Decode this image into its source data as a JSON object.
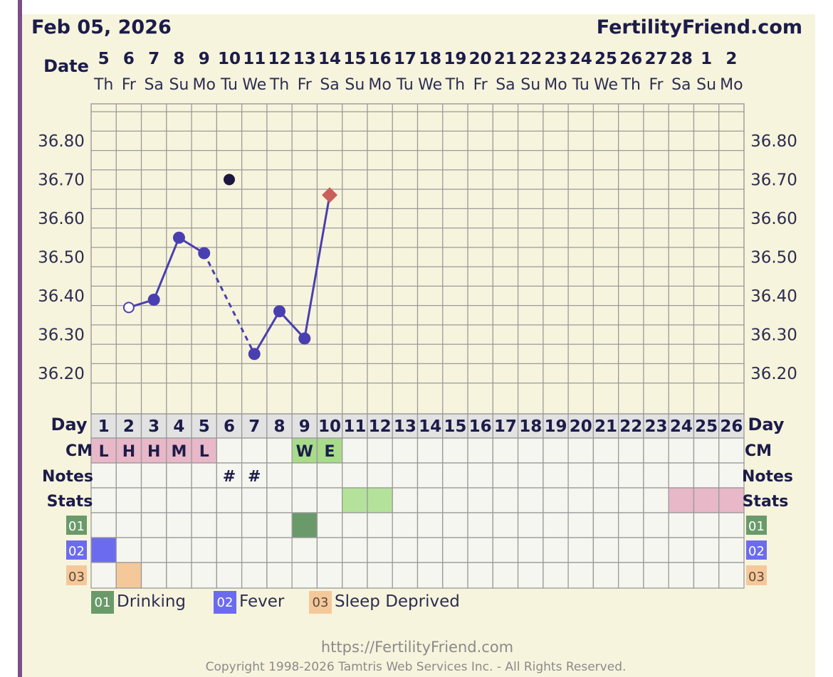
{
  "header": {
    "date": "Feb 05, 2026",
    "site": "FertilityFriend.com"
  },
  "row_labels": {
    "date": "Date",
    "day": "Day",
    "cm": "CM",
    "notes": "Notes",
    "stats": "Stats"
  },
  "chart_data": {
    "type": "line",
    "ylim": [
      36.15,
      36.9
    ],
    "y_ticks": [
      "36.80",
      "36.70",
      "36.60",
      "36.50",
      "36.40",
      "36.30",
      "36.20"
    ],
    "dates": [
      "5",
      "6",
      "7",
      "8",
      "9",
      "10",
      "11",
      "12",
      "13",
      "14",
      "15",
      "16",
      "17",
      "18",
      "19",
      "20",
      "21",
      "22",
      "23",
      "24",
      "25",
      "26",
      "27",
      "28",
      "1",
      "2"
    ],
    "weekdays": [
      "Th",
      "Fr",
      "Sa",
      "Su",
      "Mo",
      "Tu",
      "We",
      "Th",
      "Fr",
      "Sa",
      "Su",
      "Mo",
      "Tu",
      "We",
      "Th",
      "Fr",
      "Sa",
      "Su",
      "Mo",
      "Tu",
      "We",
      "Th",
      "Fr",
      "Sa",
      "Su",
      "Mo"
    ],
    "cycle_days": [
      "1",
      "2",
      "3",
      "4",
      "5",
      "6",
      "7",
      "8",
      "9",
      "10",
      "11",
      "12",
      "13",
      "14",
      "15",
      "16",
      "17",
      "18",
      "19",
      "20",
      "21",
      "22",
      "23",
      "24",
      "25",
      "26"
    ],
    "temperatures": [
      {
        "day": 2,
        "temp": 36.37,
        "kind": "open"
      },
      {
        "day": 3,
        "temp": 36.39,
        "kind": "filled"
      },
      {
        "day": 4,
        "temp": 36.55,
        "kind": "filled"
      },
      {
        "day": 5,
        "temp": 36.51,
        "kind": "filled"
      },
      {
        "day": 6,
        "temp": 36.7,
        "kind": "outlier"
      },
      {
        "day": 7,
        "temp": 36.25,
        "kind": "filled"
      },
      {
        "day": 8,
        "temp": 36.36,
        "kind": "filled"
      },
      {
        "day": 9,
        "temp": 36.29,
        "kind": "filled"
      },
      {
        "day": 10,
        "temp": 36.66,
        "kind": "diamond"
      }
    ],
    "segments": [
      {
        "from": 2,
        "to": 3,
        "style": "solid"
      },
      {
        "from": 3,
        "to": 4,
        "style": "solid"
      },
      {
        "from": 4,
        "to": 5,
        "style": "solid"
      },
      {
        "from": 5,
        "to": 7,
        "style": "dashed"
      },
      {
        "from": 7,
        "to": 8,
        "style": "solid"
      },
      {
        "from": 8,
        "to": 9,
        "style": "solid"
      },
      {
        "from": 9,
        "to": 10,
        "style": "solid"
      }
    ],
    "cm": [
      {
        "day": 1,
        "text": "L",
        "color": "#e8b8c8"
      },
      {
        "day": 2,
        "text": "H",
        "color": "#e8b8c8"
      },
      {
        "day": 3,
        "text": "H",
        "color": "#e8b8c8"
      },
      {
        "day": 4,
        "text": "M",
        "color": "#e8b8c8"
      },
      {
        "day": 5,
        "text": "L",
        "color": "#e8b8c8"
      },
      {
        "day": 9,
        "text": "W",
        "color": "#a8dc8a"
      },
      {
        "day": 10,
        "text": "E",
        "color": "#a8dc8a"
      }
    ],
    "notes": [
      {
        "day": 6,
        "text": "#"
      },
      {
        "day": 7,
        "text": "#"
      }
    ],
    "stats": [
      {
        "day": 11,
        "color": "#b4e29a"
      },
      {
        "day": 12,
        "color": "#b4e29a"
      },
      {
        "day": 24,
        "color": "#e8b8c8"
      },
      {
        "day": 25,
        "color": "#e8b8c8"
      },
      {
        "day": 26,
        "color": "#e8b8c8"
      }
    ],
    "custom_rows": [
      {
        "code": "01",
        "color": "#6a9a6a",
        "days": [
          9
        ]
      },
      {
        "code": "02",
        "color": "#6b6bf0",
        "days": [
          1
        ]
      },
      {
        "code": "03",
        "color": "#f5c89a",
        "days": [
          2
        ]
      }
    ],
    "legend": [
      {
        "code": "01",
        "label": "Drinking",
        "color": "#6a9a6a"
      },
      {
        "code": "02",
        "label": "Fever",
        "color": "#6b6bf0"
      },
      {
        "code": "03",
        "label": "Sleep Deprived",
        "color": "#f5c89a"
      }
    ],
    "colors": {
      "line": "#4a3fb0",
      "outlier": "#1c1640",
      "diamond": "#c9605a",
      "grid": "#9a9a9a",
      "cell_bg": "#f6f6f0"
    }
  },
  "footer": {
    "url": "https://FertilityFriend.com",
    "copyright": "Copyright 1998-2026 Tamtris Web Services Inc. - All Rights Reserved."
  }
}
